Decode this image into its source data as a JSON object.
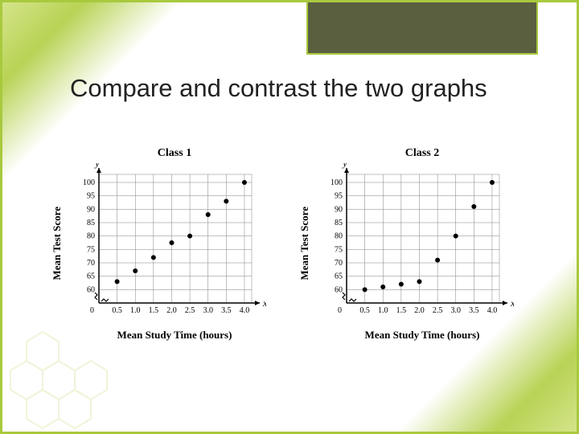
{
  "heading": "Compare and contrast the two graphs",
  "x_axis_label": "Mean Study Time (hours)",
  "y_axis_label": "Mean Test Score",
  "axis_var_x": "x",
  "axis_var_y": "y",
  "axis": {
    "x_ticks": [
      0.5,
      1.0,
      1.5,
      2.0,
      2.5,
      3.0,
      3.5,
      4.0
    ],
    "y_ticks": [
      60,
      65,
      70,
      75,
      80,
      85,
      90,
      95,
      100
    ],
    "xlim": [
      0,
      4.2
    ],
    "ylim": [
      55,
      103
    ],
    "tick_fontsize": 10,
    "axis_color": "#000000",
    "grid_color": "#808080",
    "background_color": "#ffffff"
  },
  "charts": [
    {
      "title": "Class 1",
      "type": "scatter",
      "points": [
        {
          "x": 0.5,
          "y": 63
        },
        {
          "x": 1.0,
          "y": 67
        },
        {
          "x": 1.5,
          "y": 72
        },
        {
          "x": 2.0,
          "y": 77.5
        },
        {
          "x": 2.5,
          "y": 80
        },
        {
          "x": 3.0,
          "y": 88
        },
        {
          "x": 3.5,
          "y": 93
        },
        {
          "x": 4.0,
          "y": 100
        }
      ],
      "marker_color": "#000000",
      "marker_radius": 3
    },
    {
      "title": "Class 2",
      "type": "scatter",
      "points": [
        {
          "x": 0.5,
          "y": 60
        },
        {
          "x": 1.0,
          "y": 61
        },
        {
          "x": 1.5,
          "y": 62
        },
        {
          "x": 2.0,
          "y": 63
        },
        {
          "x": 2.5,
          "y": 71
        },
        {
          "x": 3.0,
          "y": 80
        },
        {
          "x": 3.5,
          "y": 91
        },
        {
          "x": 4.0,
          "y": 100
        }
      ],
      "marker_color": "#000000",
      "marker_radius": 3
    }
  ],
  "theme": {
    "border_color": "#a8c93e",
    "title_block_bg": "#5a5f3f",
    "gradient_green": "#b8d355",
    "hex_color": "#c9db7a"
  }
}
